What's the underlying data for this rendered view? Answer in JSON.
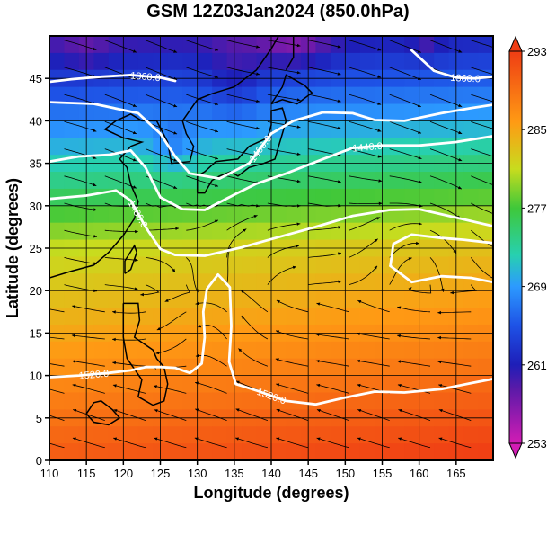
{
  "chart_data": {
    "type": "heatmap",
    "title": "GSM 12Z03Jan2024 (850.0hPa)",
    "xlabel": "Longitude (degrees)",
    "ylabel": "Latitude (degrees)",
    "xlim": [
      110,
      170
    ],
    "ylim": [
      0,
      50
    ],
    "x_ticks": [
      110,
      115,
      120,
      125,
      130,
      135,
      140,
      145,
      150,
      155,
      160,
      165
    ],
    "y_ticks": [
      0,
      5,
      10,
      15,
      20,
      25,
      30,
      35,
      40,
      45
    ],
    "grid": true,
    "colorbar": {
      "min": 253,
      "max": 293,
      "ticks": [
        253,
        261,
        269,
        277,
        285,
        293
      ],
      "colors": [
        "#d21cb4",
        "#1e1eb8",
        "#2c9aff",
        "#27d0b0",
        "#3fc83a",
        "#c8dc1e",
        "#ff9a14",
        "#ef3d14"
      ]
    },
    "contour_labels": [
      "1360.0",
      "1400.0",
      "1360.0",
      "1440.0",
      "1480.0",
      "1520.0",
      "1520.0",
      "1520.0"
    ],
    "contours": [
      {
        "level": 1360.0,
        "points": [
          [
            110,
            44.6
          ],
          [
            113,
            44.9
          ],
          [
            117,
            45.2
          ],
          [
            121,
            45.4
          ],
          [
            125,
            45.1
          ],
          [
            127,
            44.7
          ]
        ]
      },
      {
        "level": 1360.0,
        "points": [
          [
            159,
            48.3
          ],
          [
            162,
            45.9
          ],
          [
            165,
            45.1
          ],
          [
            167.5,
            45.0
          ],
          [
            170,
            45.2
          ]
        ]
      },
      {
        "level": 1400.0,
        "points": [
          [
            110,
            42.2
          ],
          [
            116,
            42.0
          ],
          [
            122,
            40.9
          ],
          [
            125,
            38.5
          ],
          [
            127,
            35.8
          ],
          [
            129,
            33.8
          ],
          [
            133,
            33.2
          ],
          [
            137,
            35.0
          ],
          [
            140,
            38.5
          ],
          [
            143,
            40.0
          ],
          [
            147,
            41.0
          ],
          [
            151,
            40.9
          ],
          [
            154,
            40.1
          ],
          [
            158,
            40.0
          ],
          [
            163,
            40.9
          ],
          [
            167,
            41.5
          ],
          [
            170,
            41.9
          ]
        ]
      },
      {
        "level": 1440.0,
        "points": [
          [
            110,
            35.2
          ],
          [
            114,
            35.8
          ],
          [
            118,
            36.0
          ],
          [
            121,
            36.5
          ],
          [
            123,
            34.5
          ],
          [
            125,
            31.0
          ],
          [
            128,
            29.6
          ],
          [
            131,
            29.5
          ],
          [
            135,
            31.3
          ],
          [
            138,
            32.6
          ],
          [
            142,
            33.8
          ],
          [
            147,
            35.5
          ],
          [
            151,
            36.8
          ],
          [
            155,
            37.1
          ],
          [
            160,
            37.1
          ],
          [
            165,
            37.5
          ],
          [
            170,
            38.2
          ]
        ]
      },
      {
        "level": 1480.0,
        "points": [
          [
            110,
            30.8
          ],
          [
            115,
            31.2
          ],
          [
            119,
            31.8
          ],
          [
            121,
            30.6
          ],
          [
            123,
            27.5
          ],
          [
            125,
            24.9
          ],
          [
            127,
            24.2
          ],
          [
            131,
            24.1
          ],
          [
            136,
            25.1
          ],
          [
            141,
            26.3
          ],
          [
            146,
            27.5
          ],
          [
            151,
            28.8
          ],
          [
            156,
            29.5
          ],
          [
            160,
            29.6
          ],
          [
            165,
            28.6
          ],
          [
            170,
            27.6
          ]
        ]
      },
      {
        "level": 1520.0,
        "points": [
          [
            110,
            9.8
          ],
          [
            114,
            10.0
          ],
          [
            118,
            10.3
          ],
          [
            121,
            10.6
          ],
          [
            123,
            11.0
          ],
          [
            125,
            11.0
          ],
          [
            127,
            10.9
          ],
          [
            129,
            10.3
          ],
          [
            130.6,
            11.4
          ],
          [
            131.0,
            14.5
          ],
          [
            130.8,
            17.5
          ],
          [
            131.3,
            20.2
          ],
          [
            132.8,
            21.9
          ],
          [
            134.4,
            20.4
          ],
          [
            134.6,
            15.8
          ],
          [
            134.3,
            11.6
          ],
          [
            135.2,
            9.0
          ],
          [
            138.1,
            8.2
          ],
          [
            142,
            7.0
          ],
          [
            146,
            6.6
          ],
          [
            150,
            7.4
          ],
          [
            154,
            8.1
          ],
          [
            158,
            8.0
          ],
          [
            163,
            8.4
          ],
          [
            167,
            9.1
          ],
          [
            170,
            9.6
          ]
        ]
      },
      {
        "level": 1520.0,
        "points": [
          [
            156.1,
            22.9
          ],
          [
            159,
            21.0
          ],
          [
            163,
            21.7
          ],
          [
            167,
            21.5
          ],
          [
            170,
            21.0
          ]
        ]
      },
      {
        "level": 1520.0,
        "points": [
          [
            156.1,
            22.9
          ],
          [
            156.5,
            25.5
          ],
          [
            159,
            26.6
          ],
          [
            163,
            26.2
          ],
          [
            166,
            26.0
          ],
          [
            170,
            25.6
          ]
        ]
      }
    ]
  }
}
